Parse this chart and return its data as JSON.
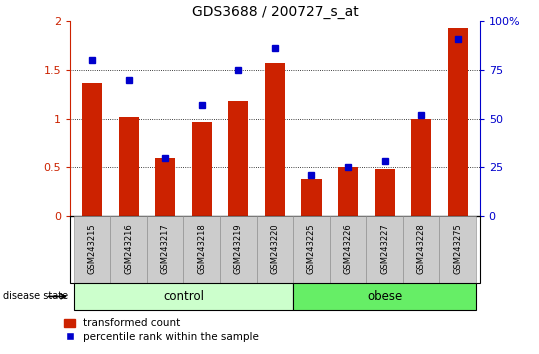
{
  "title": "GDS3688 / 200727_s_at",
  "samples": [
    "GSM243215",
    "GSM243216",
    "GSM243217",
    "GSM243218",
    "GSM243219",
    "GSM243220",
    "GSM243225",
    "GSM243226",
    "GSM243227",
    "GSM243228",
    "GSM243275"
  ],
  "transformed_count": [
    1.37,
    1.02,
    0.6,
    0.97,
    1.18,
    1.57,
    0.38,
    0.5,
    0.48,
    1.0,
    1.93
  ],
  "percentile_rank": [
    80,
    70,
    30,
    57,
    75,
    86,
    21,
    25,
    28,
    52,
    91
  ],
  "ylim_left": [
    0,
    2.0
  ],
  "ylim_right": [
    0,
    100
  ],
  "yticks_left": [
    0,
    0.5,
    1.0,
    1.5,
    2.0
  ],
  "yticks_left_labels": [
    "0",
    "0.5",
    "1",
    "1.5",
    "2"
  ],
  "yticks_right": [
    0,
    25,
    50,
    75,
    100
  ],
  "yticks_right_labels": [
    "0",
    "25",
    "50",
    "75",
    "100%"
  ],
  "bar_color": "#cc2200",
  "dot_color": "#0000cc",
  "control_count": 6,
  "obese_count": 5,
  "control_label": "control",
  "obese_label": "obese",
  "disease_label": "disease state",
  "legend_bar_label": "transformed count",
  "legend_dot_label": "percentile rank within the sample",
  "control_color": "#ccffcc",
  "obese_color": "#66ee66",
  "bg_color": "#cccccc",
  "title_fontsize": 10,
  "grid_values": [
    0.5,
    1.0,
    1.5
  ]
}
